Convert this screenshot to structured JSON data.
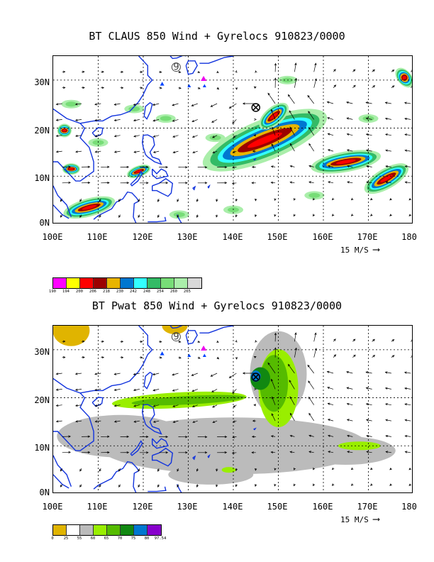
{
  "top": {
    "title": "BT CLAUS 850 Wind + Gyrelocs 910823/0000",
    "lat_labels": [
      "30N",
      "20N",
      "10N",
      "0N"
    ],
    "lon_labels": [
      "100E",
      "110E",
      "120E",
      "130E",
      "140E",
      "150E",
      "160E",
      "170E",
      "180"
    ],
    "scale_label": "15 M/S",
    "colorbar": {
      "labels": [
        "190",
        "194",
        "200",
        "206",
        "218",
        "230",
        "242",
        "248",
        "254",
        "260",
        "265"
      ],
      "colors": [
        "#ff00ff",
        "#ffff00",
        "#ff0000",
        "#9b0000",
        "#e8b400",
        "#0077d0",
        "#33ffff",
        "#33bb66",
        "#77dd77",
        "#aaeeaa",
        "#d8d8d8"
      ]
    }
  },
  "bottom": {
    "title": "BT Pwat 850 Wind + Gyrelocs 910823/0000",
    "lat_labels": [
      "30N",
      "20N",
      "10N",
      "0N"
    ],
    "lon_labels": [
      "100E",
      "110E",
      "120E",
      "130E",
      "140E",
      "150E",
      "160E",
      "170E",
      "180"
    ],
    "scale_label": "15 M/S",
    "colorbar": {
      "labels": [
        "0",
        "25",
        "55",
        "60",
        "65",
        "70",
        "75",
        "80",
        "97.54"
      ],
      "colors": [
        "#e0b400",
        "#ffffff",
        "#bbbbbb",
        "#99ee00",
        "#55bb00",
        "#118811",
        "#0077d0",
        "#8800cc"
      ]
    }
  },
  "colors": {
    "coast": "#1133dd",
    "gyre_marker": "#000000",
    "triangle_magenta": "#ee00ee",
    "triangle_blue": "#0044ff"
  }
}
